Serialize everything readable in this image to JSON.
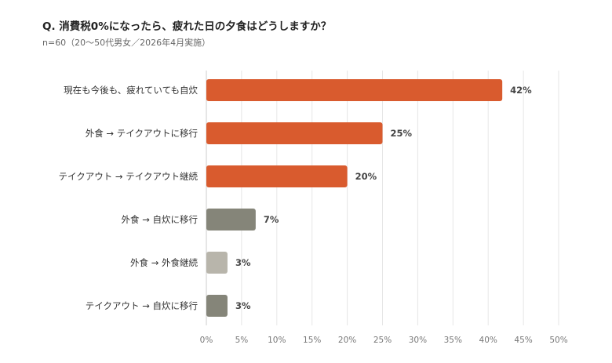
{
  "title": "Q. 消費税0%になったら、疲れた日の夕食はどうしますか？",
  "subtitle": "n=60（20〜50代男女／2026年4月実施）",
  "chart_data": {
    "type": "bar",
    "orientation": "horizontal",
    "categories": [
      "現在も今後も、疲れていても自炊",
      "外食 → テイクアウトに移行",
      "テイクアウト → テイクアウト継続",
      "外食 → 自炊に移行",
      "外食 → 外食継続",
      "テイクアウト → 自炊に移行"
    ],
    "values": [
      42,
      25,
      20,
      7,
      3,
      3
    ],
    "value_labels": [
      "42%",
      "25%",
      "20%",
      "7%",
      "3%",
      "3%"
    ],
    "bar_colors": [
      "#d95b2e",
      "#d95b2e",
      "#d95b2e",
      "#858579",
      "#b8b5ab",
      "#858579"
    ],
    "xlim": [
      0,
      50
    ],
    "x_ticks": [
      0,
      5,
      10,
      15,
      20,
      25,
      30,
      35,
      40,
      45,
      50
    ],
    "x_tick_labels": [
      "0%",
      "5%",
      "10%",
      "15%",
      "20%",
      "25%",
      "30%",
      "35%",
      "40%",
      "45%",
      "50%"
    ],
    "grid": true,
    "legend": "none"
  }
}
